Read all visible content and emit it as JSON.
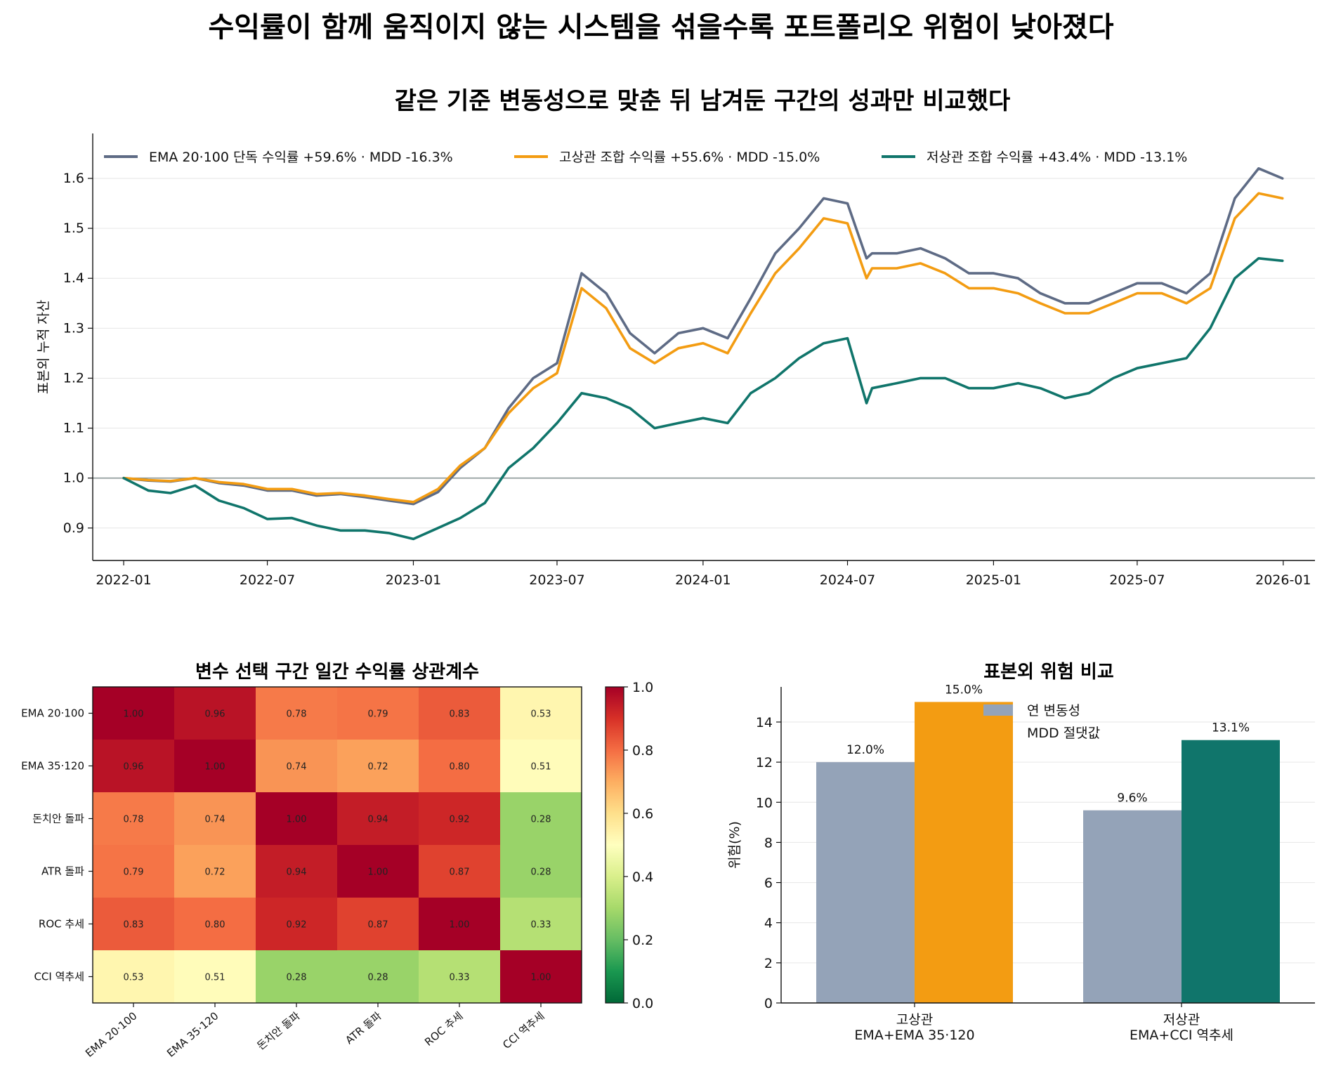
{
  "suptitle": "수익률이 함께 움직이지 않는 시스템을 섞을수록 포트폴리오 위험이 낮아졌다",
  "chart_data": [
    {
      "type": "line",
      "title": "같은 기준 변동성으로 맞춘 뒤 남겨둔 구간의 성과만 비교했다",
      "ylabel": "표본외 누적 자산",
      "xlabel": "",
      "x_ticks": [
        "2022-01",
        "2022-07",
        "2023-01",
        "2023-07",
        "2024-01",
        "2024-07",
        "2025-01",
        "2025-07",
        "2026-01"
      ],
      "y_ticks": [
        "0.9",
        "1.0",
        "1.1",
        "1.2",
        "1.3",
        "1.4",
        "1.5",
        "1.6"
      ],
      "ylim": [
        0.835,
        1.69
      ],
      "xlim": [
        "2021-11-23",
        "2026-02-10"
      ],
      "reference_line": 1.0,
      "legend_position": "top",
      "grid": "horizontal",
      "series": [
        {
          "name": "EMA 20·100 단독  수익률 +59.6% · MDD -16.3%",
          "color": "#5e6b85",
          "points": [
            [
              "2022-01-01",
              1.0
            ],
            [
              "2022-02-01",
              0.995
            ],
            [
              "2022-03-01",
              0.993
            ],
            [
              "2022-04-01",
              1.0
            ],
            [
              "2022-05-01",
              0.99
            ],
            [
              "2022-06-01",
              0.985
            ],
            [
              "2022-07-01",
              0.975
            ],
            [
              "2022-08-01",
              0.975
            ],
            [
              "2022-09-01",
              0.965
            ],
            [
              "2022-10-01",
              0.968
            ],
            [
              "2022-11-01",
              0.962
            ],
            [
              "2022-12-01",
              0.955
            ],
            [
              "2023-01-01",
              0.948
            ],
            [
              "2023-02-01",
              0.972
            ],
            [
              "2023-03-01",
              1.02
            ],
            [
              "2023-04-01",
              1.06
            ],
            [
              "2023-05-01",
              1.14
            ],
            [
              "2023-06-01",
              1.2
            ],
            [
              "2023-07-01",
              1.23
            ],
            [
              "2023-08-01",
              1.41
            ],
            [
              "2023-09-01",
              1.37
            ],
            [
              "2023-10-01",
              1.29
            ],
            [
              "2023-11-01",
              1.25
            ],
            [
              "2023-12-01",
              1.29
            ],
            [
              "2024-01-01",
              1.3
            ],
            [
              "2024-02-01",
              1.28
            ],
            [
              "2024-03-01",
              1.36
            ],
            [
              "2024-04-01",
              1.45
            ],
            [
              "2024-05-01",
              1.5
            ],
            [
              "2024-06-01",
              1.56
            ],
            [
              "2024-07-01",
              1.55
            ],
            [
              "2024-07-25",
              1.44
            ],
            [
              "2024-08-01",
              1.45
            ],
            [
              "2024-09-01",
              1.45
            ],
            [
              "2024-10-01",
              1.46
            ],
            [
              "2024-11-01",
              1.44
            ],
            [
              "2024-12-01",
              1.41
            ],
            [
              "2025-01-01",
              1.41
            ],
            [
              "2025-02-01",
              1.4
            ],
            [
              "2025-03-01",
              1.37
            ],
            [
              "2025-04-01",
              1.35
            ],
            [
              "2025-05-01",
              1.35
            ],
            [
              "2025-06-01",
              1.37
            ],
            [
              "2025-07-01",
              1.39
            ],
            [
              "2025-08-01",
              1.39
            ],
            [
              "2025-09-01",
              1.37
            ],
            [
              "2025-10-01",
              1.41
            ],
            [
              "2025-11-01",
              1.56
            ],
            [
              "2025-12-01",
              1.62
            ],
            [
              "2025-12-31",
              1.6
            ]
          ]
        },
        {
          "name": "고상관 조합  수익률 +55.6% · MDD -15.0%",
          "color": "#f39c12",
          "points": [
            [
              "2022-01-01",
              1.0
            ],
            [
              "2022-02-01",
              0.996
            ],
            [
              "2022-03-01",
              0.994
            ],
            [
              "2022-04-01",
              1.0
            ],
            [
              "2022-05-01",
              0.992
            ],
            [
              "2022-06-01",
              0.988
            ],
            [
              "2022-07-01",
              0.978
            ],
            [
              "2022-08-01",
              0.978
            ],
            [
              "2022-09-01",
              0.968
            ],
            [
              "2022-10-01",
              0.97
            ],
            [
              "2022-11-01",
              0.965
            ],
            [
              "2022-12-01",
              0.958
            ],
            [
              "2023-01-01",
              0.952
            ],
            [
              "2023-02-01",
              0.978
            ],
            [
              "2023-03-01",
              1.025
            ],
            [
              "2023-04-01",
              1.06
            ],
            [
              "2023-05-01",
              1.13
            ],
            [
              "2023-06-01",
              1.18
            ],
            [
              "2023-07-01",
              1.21
            ],
            [
              "2023-08-01",
              1.38
            ],
            [
              "2023-09-01",
              1.34
            ],
            [
              "2023-10-01",
              1.26
            ],
            [
              "2023-11-01",
              1.23
            ],
            [
              "2023-12-01",
              1.26
            ],
            [
              "2024-01-01",
              1.27
            ],
            [
              "2024-02-01",
              1.25
            ],
            [
              "2024-03-01",
              1.33
            ],
            [
              "2024-04-01",
              1.41
            ],
            [
              "2024-05-01",
              1.46
            ],
            [
              "2024-06-01",
              1.52
            ],
            [
              "2024-07-01",
              1.51
            ],
            [
              "2024-07-25",
              1.4
            ],
            [
              "2024-08-01",
              1.42
            ],
            [
              "2024-09-01",
              1.42
            ],
            [
              "2024-10-01",
              1.43
            ],
            [
              "2024-11-01",
              1.41
            ],
            [
              "2024-12-01",
              1.38
            ],
            [
              "2025-01-01",
              1.38
            ],
            [
              "2025-02-01",
              1.37
            ],
            [
              "2025-03-01",
              1.35
            ],
            [
              "2025-04-01",
              1.33
            ],
            [
              "2025-05-01",
              1.33
            ],
            [
              "2025-06-01",
              1.35
            ],
            [
              "2025-07-01",
              1.37
            ],
            [
              "2025-08-01",
              1.37
            ],
            [
              "2025-09-01",
              1.35
            ],
            [
              "2025-10-01",
              1.38
            ],
            [
              "2025-11-01",
              1.52
            ],
            [
              "2025-12-01",
              1.57
            ],
            [
              "2025-12-31",
              1.56
            ]
          ]
        },
        {
          "name": "저상관 조합  수익률 +43.4% · MDD -13.1%",
          "color": "#10756b",
          "points": [
            [
              "2022-01-01",
              1.0
            ],
            [
              "2022-02-01",
              0.975
            ],
            [
              "2022-03-01",
              0.97
            ],
            [
              "2022-04-01",
              0.985
            ],
            [
              "2022-05-01",
              0.955
            ],
            [
              "2022-06-01",
              0.94
            ],
            [
              "2022-07-01",
              0.918
            ],
            [
              "2022-08-01",
              0.92
            ],
            [
              "2022-09-01",
              0.905
            ],
            [
              "2022-10-01",
              0.895
            ],
            [
              "2022-11-01",
              0.895
            ],
            [
              "2022-12-01",
              0.89
            ],
            [
              "2023-01-01",
              0.878
            ],
            [
              "2023-02-01",
              0.9
            ],
            [
              "2023-03-01",
              0.92
            ],
            [
              "2023-04-01",
              0.95
            ],
            [
              "2023-05-01",
              1.02
            ],
            [
              "2023-06-01",
              1.06
            ],
            [
              "2023-07-01",
              1.11
            ],
            [
              "2023-08-01",
              1.17
            ],
            [
              "2023-09-01",
              1.16
            ],
            [
              "2023-10-01",
              1.14
            ],
            [
              "2023-11-01",
              1.1
            ],
            [
              "2023-12-01",
              1.11
            ],
            [
              "2024-01-01",
              1.12
            ],
            [
              "2024-02-01",
              1.11
            ],
            [
              "2024-03-01",
              1.17
            ],
            [
              "2024-04-01",
              1.2
            ],
            [
              "2024-05-01",
              1.24
            ],
            [
              "2024-06-01",
              1.27
            ],
            [
              "2024-07-01",
              1.28
            ],
            [
              "2024-07-25",
              1.15
            ],
            [
              "2024-08-01",
              1.18
            ],
            [
              "2024-09-01",
              1.19
            ],
            [
              "2024-10-01",
              1.2
            ],
            [
              "2024-11-01",
              1.2
            ],
            [
              "2024-12-01",
              1.18
            ],
            [
              "2025-01-01",
              1.18
            ],
            [
              "2025-02-01",
              1.19
            ],
            [
              "2025-03-01",
              1.18
            ],
            [
              "2025-04-01",
              1.16
            ],
            [
              "2025-05-01",
              1.17
            ],
            [
              "2025-06-01",
              1.2
            ],
            [
              "2025-07-01",
              1.22
            ],
            [
              "2025-08-01",
              1.23
            ],
            [
              "2025-09-01",
              1.24
            ],
            [
              "2025-10-01",
              1.3
            ],
            [
              "2025-11-01",
              1.4
            ],
            [
              "2025-12-01",
              1.44
            ],
            [
              "2025-12-31",
              1.435
            ]
          ]
        }
      ]
    },
    {
      "type": "heatmap",
      "title": "변수 선택 구간 일간 수익률 상관계수",
      "labels": [
        "EMA 20·100",
        "EMA 35·120",
        "돈치안 돌파",
        "ATR 돌파",
        "ROC 추세",
        "CCI 역추세"
      ],
      "values": [
        [
          1.0,
          0.96,
          0.78,
          0.79,
          0.83,
          0.53
        ],
        [
          0.96,
          1.0,
          0.74,
          0.72,
          0.8,
          0.51
        ],
        [
          0.78,
          0.74,
          1.0,
          0.94,
          0.92,
          0.28
        ],
        [
          0.79,
          0.72,
          0.94,
          1.0,
          0.87,
          0.28
        ],
        [
          0.83,
          0.8,
          0.92,
          0.87,
          1.0,
          0.33
        ],
        [
          0.53,
          0.51,
          0.28,
          0.28,
          0.33,
          1.0
        ]
      ],
      "value_labels": [
        [
          "1.00",
          "0.96",
          "0.78",
          "0.79",
          "0.83",
          "0.53"
        ],
        [
          "0.96",
          "1.00",
          "0.74",
          "0.72",
          "0.80",
          "0.51"
        ],
        [
          "0.78",
          "0.74",
          "1.00",
          "0.94",
          "0.92",
          "0.28"
        ],
        [
          "0.79",
          "0.72",
          "0.94",
          "1.00",
          "0.87",
          "0.28"
        ],
        [
          "0.83",
          "0.80",
          "0.92",
          "0.87",
          "1.00",
          "0.33"
        ],
        [
          "0.53",
          "0.51",
          "0.28",
          "0.28",
          "0.33",
          "1.00"
        ]
      ],
      "colorbar_ticks": [
        "0.0",
        "0.2",
        "0.4",
        "0.6",
        "0.8",
        "1.0"
      ],
      "vmin": 0,
      "vmax": 1,
      "colormap": "RdYlGn_r"
    },
    {
      "type": "bar",
      "title": "표본외 위험 비교",
      "ylabel": "위험(%)",
      "categories": [
        "고상관\nEMA+EMA 35·120",
        "저상관\nEMA+CCI 역추세"
      ],
      "category_lines": [
        [
          "고상관",
          "EMA+EMA 35·120"
        ],
        [
          "저상관",
          "EMA+CCI 역추세"
        ]
      ],
      "y_ticks": [
        "0",
        "2",
        "4",
        "6",
        "8",
        "10",
        "12",
        "14"
      ],
      "ylim": [
        0,
        15.75
      ],
      "legend": [
        "연 변동성",
        "MDD 절댓값"
      ],
      "legend_position": "top-center",
      "series": [
        {
          "name": "연 변동성",
          "values": [
            12.0,
            9.6
          ],
          "labels": [
            "12.0%",
            "9.6%"
          ],
          "colors": [
            "#94a3b8",
            "#94a3b8"
          ]
        },
        {
          "name": "MDD 절댓값",
          "values": [
            15.0,
            13.1
          ],
          "labels": [
            "15.0%",
            "13.1%"
          ],
          "colors": [
            "#f39c12",
            "#10756b"
          ]
        }
      ]
    }
  ]
}
